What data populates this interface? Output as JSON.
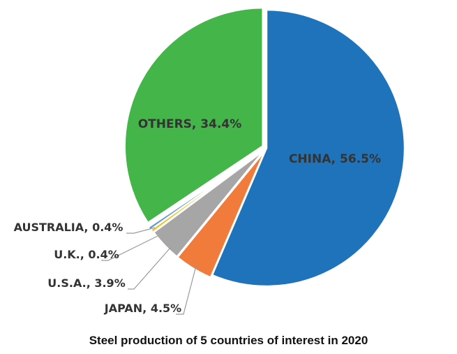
{
  "chart_data": {
    "type": "pie",
    "title": "Steel production of 5 countries of interest in 2020",
    "slices": [
      {
        "label": "CHINA, 56.5%",
        "name": "CHINA",
        "value": 56.5,
        "color": "#1f73bb",
        "label_style": "inside",
        "label_color": "#333333"
      },
      {
        "label": "JAPAN, 4.5%",
        "name": "JAPAN",
        "value": 4.5,
        "color": "#f07b3a",
        "label_style": "leader"
      },
      {
        "label": "U.S.A., 3.9%",
        "name": "U.S.A.",
        "value": 3.9,
        "color": "#a6a6a6",
        "label_style": "leader"
      },
      {
        "label": "U.K., 0.4%",
        "name": "U.K.",
        "value": 0.4,
        "color": "#f2c11b",
        "label_style": "leader"
      },
      {
        "label": "AUSTRALIA, 0.4%",
        "name": "AUSTRALIA",
        "value": 0.4,
        "color": "#5b9bd5",
        "label_style": "leader"
      },
      {
        "label": "OTHERS, 34.4%",
        "name": "OTHERS",
        "value": 34.4,
        "color": "#44b549",
        "label_style": "inside",
        "label_color": "#333333"
      }
    ],
    "start_angle": "12 o'clock",
    "direction": "clockwise",
    "exploded": true
  }
}
